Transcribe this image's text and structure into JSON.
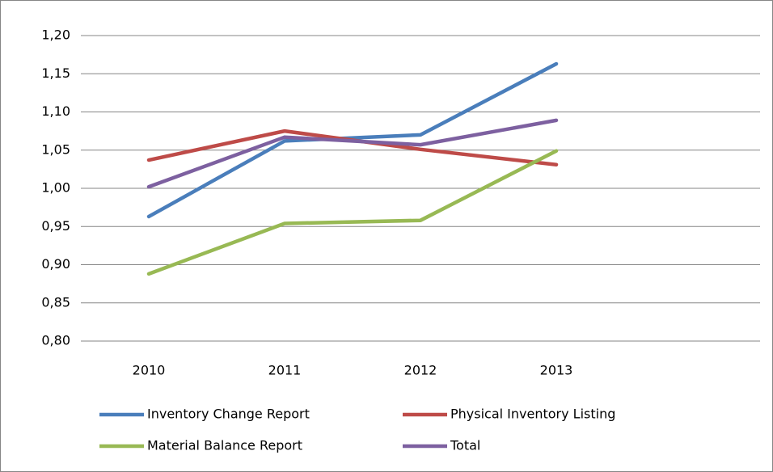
{
  "chart_data": {
    "type": "line",
    "categories": [
      "2010",
      "2011",
      "2012",
      "2013",
      null
    ],
    "series": [
      {
        "name": "Inventory Change Report",
        "color": "#4a7ebb",
        "values": [
          0.963,
          1.062,
          1.07,
          1.163,
          null
        ]
      },
      {
        "name": "Physical Inventory Listing",
        "color": "#be4b48",
        "values": [
          1.037,
          1.075,
          1.051,
          1.031,
          null
        ]
      },
      {
        "name": "Material Balance Report",
        "color": "#98b954",
        "values": [
          0.888,
          0.954,
          0.958,
          1.049,
          null
        ]
      },
      {
        "name": "Total",
        "color": "#7d60a0",
        "values": [
          1.002,
          1.067,
          1.057,
          1.089,
          null
        ]
      }
    ],
    "ylim": [
      0.8,
      1.2
    ],
    "yticks": [
      {
        "value": 0.8,
        "label": "0,80"
      },
      {
        "value": 0.85,
        "label": "0,85"
      },
      {
        "value": 0.9,
        "label": "0,90"
      },
      {
        "value": 0.95,
        "label": "0,95"
      },
      {
        "value": 1.0,
        "label": "1,00"
      },
      {
        "value": 1.05,
        "label": "1,05"
      },
      {
        "value": 1.1,
        "label": "1,10"
      },
      {
        "value": 1.15,
        "label": "1,15"
      },
      {
        "value": 1.2,
        "label": "1,20"
      }
    ],
    "grid": true,
    "legend": "bottom"
  }
}
